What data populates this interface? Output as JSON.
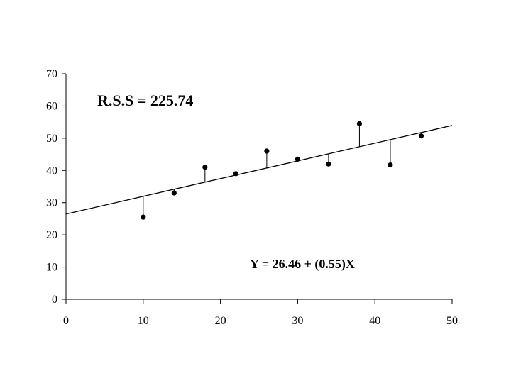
{
  "chart_data": {
    "type": "scatter",
    "title": "",
    "xlabel": "",
    "ylabel": "",
    "xlim": [
      0,
      50
    ],
    "ylim": [
      0,
      70
    ],
    "x_ticks": [
      "0",
      "10",
      "20",
      "30",
      "40",
      "50"
    ],
    "y_ticks": [
      "0",
      "10",
      "20",
      "30",
      "40",
      "50",
      "60",
      "70"
    ],
    "grid": false,
    "series": [
      {
        "x": [
          10,
          14,
          18,
          22,
          26,
          30,
          34,
          38,
          42,
          46
        ],
        "y": [
          25.5,
          33,
          41,
          39,
          46,
          43.5,
          42,
          54.5,
          41.7,
          50.7
        ]
      }
    ],
    "fit_line": {
      "intercept": 26.46,
      "slope": 0.55
    },
    "annotations": {
      "rss": "R.S.S = 225.74",
      "equation": "Y = 26.46 + (0.55)X"
    }
  }
}
